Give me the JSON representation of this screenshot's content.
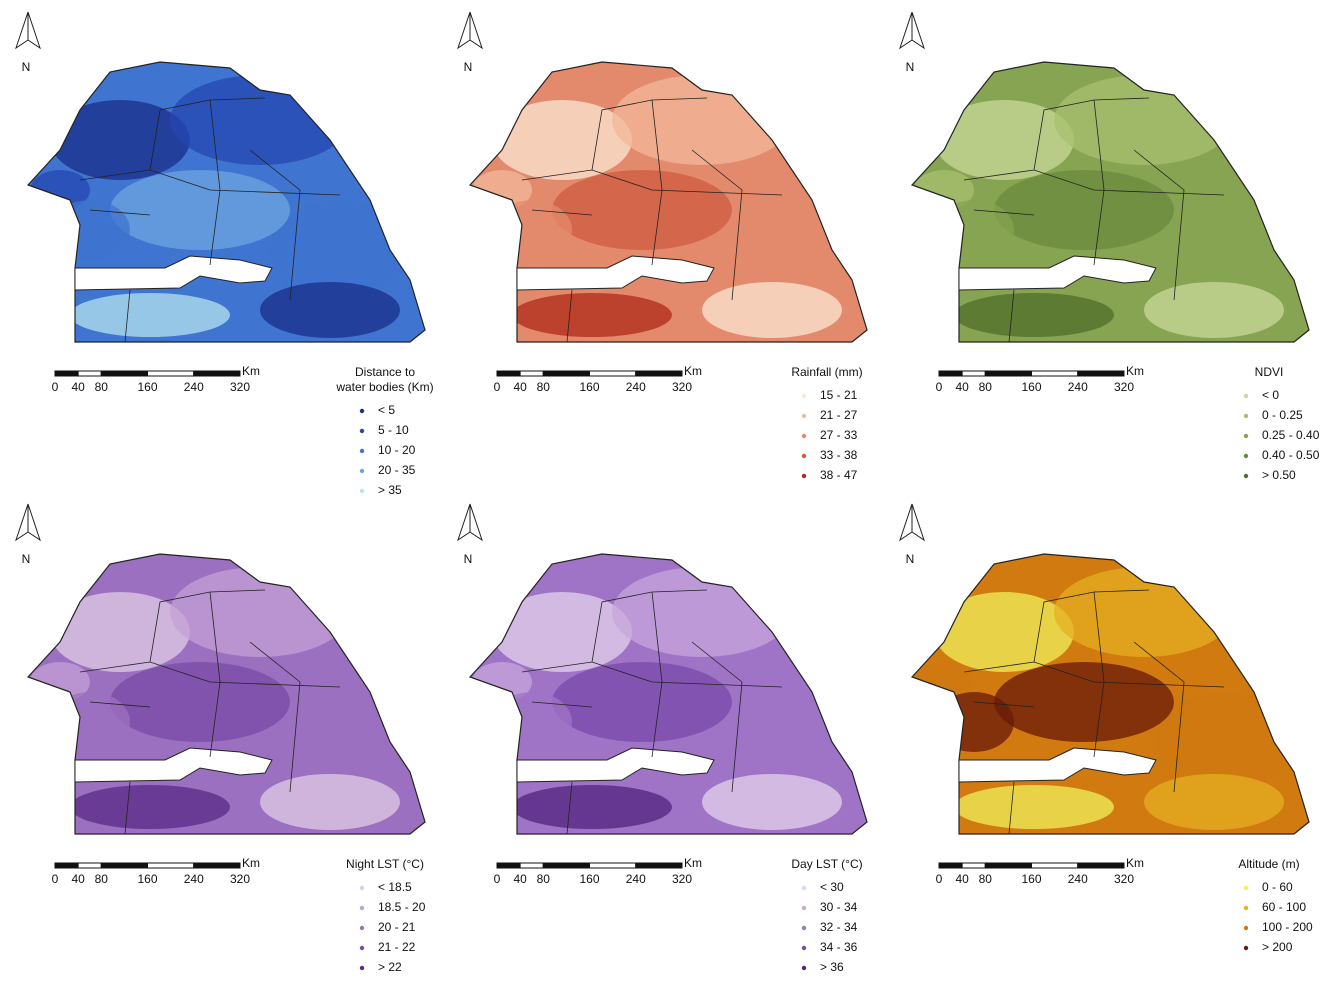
{
  "panels": [
    {
      "north": "N",
      "scale": {
        "ticks": [
          0,
          40,
          80,
          160,
          240,
          320
        ],
        "unit": "Km"
      },
      "legend_title": [
        "Distance to",
        "water bodies (Km)"
      ],
      "legend": [
        {
          "label": "< 5",
          "color": "#1a2f8a"
        },
        {
          "label": "5 - 10",
          "color": "#2447b0"
        },
        {
          "label": "10 - 20",
          "color": "#3f74d0"
        },
        {
          "label": "20 - 35",
          "color": "#6fa6e0"
        },
        {
          "label": "> 35",
          "color": "#b5e3ee"
        }
      ]
    },
    {
      "north": "N",
      "scale": {
        "ticks": [
          0,
          40,
          80,
          160,
          240,
          320
        ],
        "unit": "Km"
      },
      "legend_title": [
        "Rainfall (mm)"
      ],
      "legend": [
        {
          "label": "15 - 21",
          "color": "#fbe6d2"
        },
        {
          "label": "21 - 27",
          "color": "#f3b79a"
        },
        {
          "label": "27 - 33",
          "color": "#e48a6c"
        },
        {
          "label": "33 - 38",
          "color": "#cf5b40"
        },
        {
          "label": "38 - 47",
          "color": "#b02a1a"
        }
      ]
    },
    {
      "north": "N",
      "scale": {
        "ticks": [
          0,
          40,
          80,
          160,
          240,
          320
        ],
        "unit": "Km"
      },
      "legend_title": [
        "NDVI"
      ],
      "legend": [
        {
          "label": "< 0",
          "color": "#c9d99a"
        },
        {
          "label": "0 - 0.25",
          "color": "#a8c070"
        },
        {
          "label": "0.25 - 0.40",
          "color": "#86a452"
        },
        {
          "label": "0.40 - 0.50",
          "color": "#6a8a3c"
        },
        {
          "label": "> 0.50",
          "color": "#4f6e2a"
        }
      ]
    },
    {
      "north": "N",
      "scale": {
        "ticks": [
          0,
          40,
          80,
          160,
          240,
          320
        ],
        "unit": "Km"
      },
      "legend_title": [
        "Night LST (°C)"
      ],
      "legend": [
        {
          "label": "< 18.5",
          "color": "#e0cbe6"
        },
        {
          "label": "18.5 - 20",
          "color": "#c3a0d6"
        },
        {
          "label": "20 - 21",
          "color": "#9c70c0"
        },
        {
          "label": "21 - 22",
          "color": "#7a4aa6"
        },
        {
          "label": "> 22",
          "color": "#5a2a86"
        }
      ]
    },
    {
      "north": "N",
      "scale": {
        "ticks": [
          0,
          40,
          80,
          160,
          240,
          320
        ],
        "unit": "Km"
      },
      "legend_title": [
        "Day LST (°C)"
      ],
      "legend": [
        {
          "label": "< 30",
          "color": "#e4d2ec"
        },
        {
          "label": "30 - 34",
          "color": "#c7a6dc"
        },
        {
          "label": "32 - 34",
          "color": "#9f74c6"
        },
        {
          "label": "34 - 36",
          "color": "#7a48aa"
        },
        {
          "label": "> 36",
          "color": "#53237e"
        }
      ]
    },
    {
      "north": "N",
      "scale": {
        "ticks": [
          0,
          40,
          80,
          160,
          240,
          320
        ],
        "unit": "Km"
      },
      "legend_title": [
        "Altitude (m)"
      ],
      "legend": [
        {
          "label": "0 - 60",
          "color": "#f0f05a"
        },
        {
          "label": "60 - 100",
          "color": "#e6b020"
        },
        {
          "label": "100 - 200",
          "color": "#d07a10"
        },
        {
          "label": "> 200",
          "color": "#6a1a0a"
        }
      ]
    }
  ]
}
